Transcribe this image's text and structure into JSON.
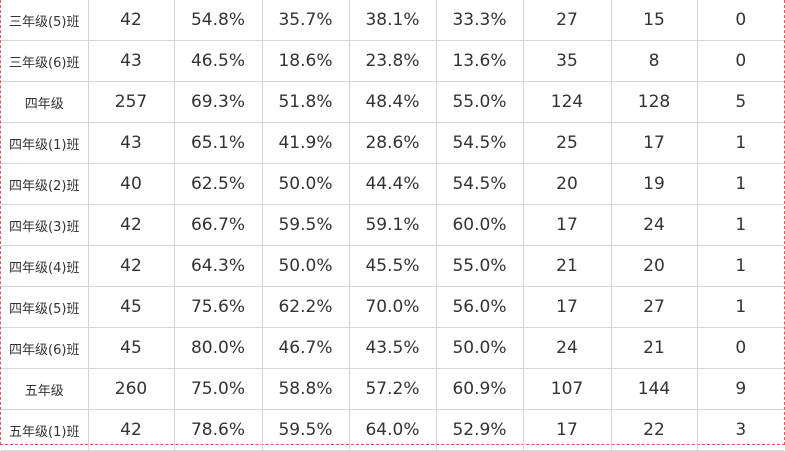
{
  "table": {
    "rows": [
      [
        "三年级(5)班",
        "42",
        "54.8%",
        "35.7%",
        "38.1%",
        "33.3%",
        "27",
        "15",
        "0"
      ],
      [
        "三年级(6)班",
        "43",
        "46.5%",
        "18.6%",
        "23.8%",
        "13.6%",
        "35",
        "8",
        "0"
      ],
      [
        "四年级",
        "257",
        "69.3%",
        "51.8%",
        "48.4%",
        "55.0%",
        "124",
        "128",
        "5"
      ],
      [
        "四年级(1)班",
        "43",
        "65.1%",
        "41.9%",
        "28.6%",
        "54.5%",
        "25",
        "17",
        "1"
      ],
      [
        "四年级(2)班",
        "40",
        "62.5%",
        "50.0%",
        "44.4%",
        "54.5%",
        "20",
        "19",
        "1"
      ],
      [
        "四年级(3)班",
        "42",
        "66.7%",
        "59.5%",
        "59.1%",
        "60.0%",
        "17",
        "24",
        "1"
      ],
      [
        "四年级(4)班",
        "42",
        "64.3%",
        "50.0%",
        "45.5%",
        "55.0%",
        "21",
        "20",
        "1"
      ],
      [
        "四年级(5)班",
        "45",
        "75.6%",
        "62.2%",
        "70.0%",
        "56.0%",
        "17",
        "27",
        "1"
      ],
      [
        "四年级(6)班",
        "45",
        "80.0%",
        "46.7%",
        "43.5%",
        "50.0%",
        "24",
        "21",
        "0"
      ],
      [
        "五年级",
        "260",
        "75.0%",
        "58.8%",
        "57.2%",
        "60.9%",
        "107",
        "144",
        "9"
      ],
      [
        "五年级(1)班",
        "42",
        "78.6%",
        "59.5%",
        "64.0%",
        "52.9%",
        "17",
        "22",
        "3"
      ]
    ]
  }
}
